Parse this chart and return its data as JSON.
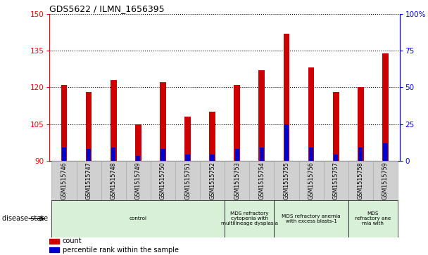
{
  "title": "GDS5622 / ILMN_1656395",
  "samples": [
    "GSM1515746",
    "GSM1515747",
    "GSM1515748",
    "GSM1515749",
    "GSM1515750",
    "GSM1515751",
    "GSM1515752",
    "GSM1515753",
    "GSM1515754",
    "GSM1515755",
    "GSM1515756",
    "GSM1515757",
    "GSM1515758",
    "GSM1515759"
  ],
  "counts": [
    121,
    118,
    123,
    105,
    122,
    108,
    110,
    121,
    127,
    142,
    128,
    118,
    120,
    134
  ],
  "percentiles": [
    9,
    8,
    9,
    3,
    8,
    4,
    4,
    8,
    9,
    25,
    9,
    4,
    9,
    12
  ],
  "ymin": 90,
  "ymax": 150,
  "y_ticks": [
    90,
    105,
    120,
    135,
    150
  ],
  "y2_ticks": [
    0,
    25,
    50,
    75,
    100
  ],
  "bar_color": "#cc0000",
  "blue_color": "#0000cc",
  "disease_groups": [
    {
      "label": "control",
      "start": 0,
      "end": 7,
      "color": "#d8f0d8"
    },
    {
      "label": "MDS refractory\ncytopenia with\nmultilineage dysplasia",
      "start": 7,
      "end": 9,
      "color": "#d8f0d8"
    },
    {
      "label": "MDS refractory anemia\nwith excess blasts-1",
      "start": 9,
      "end": 12,
      "color": "#d8f0d8"
    },
    {
      "label": "MDS\nrefractory ane\nmia with",
      "start": 12,
      "end": 14,
      "color": "#d8f0d8"
    }
  ],
  "disease_state_label": "disease state",
  "legend_count_label": "count",
  "legend_percentile_label": "percentile rank within the sample",
  "tick_bg_color": "#d0d0d0",
  "grid_color": "#555555",
  "bar_width": 0.25,
  "blue_bar_width": 0.18
}
